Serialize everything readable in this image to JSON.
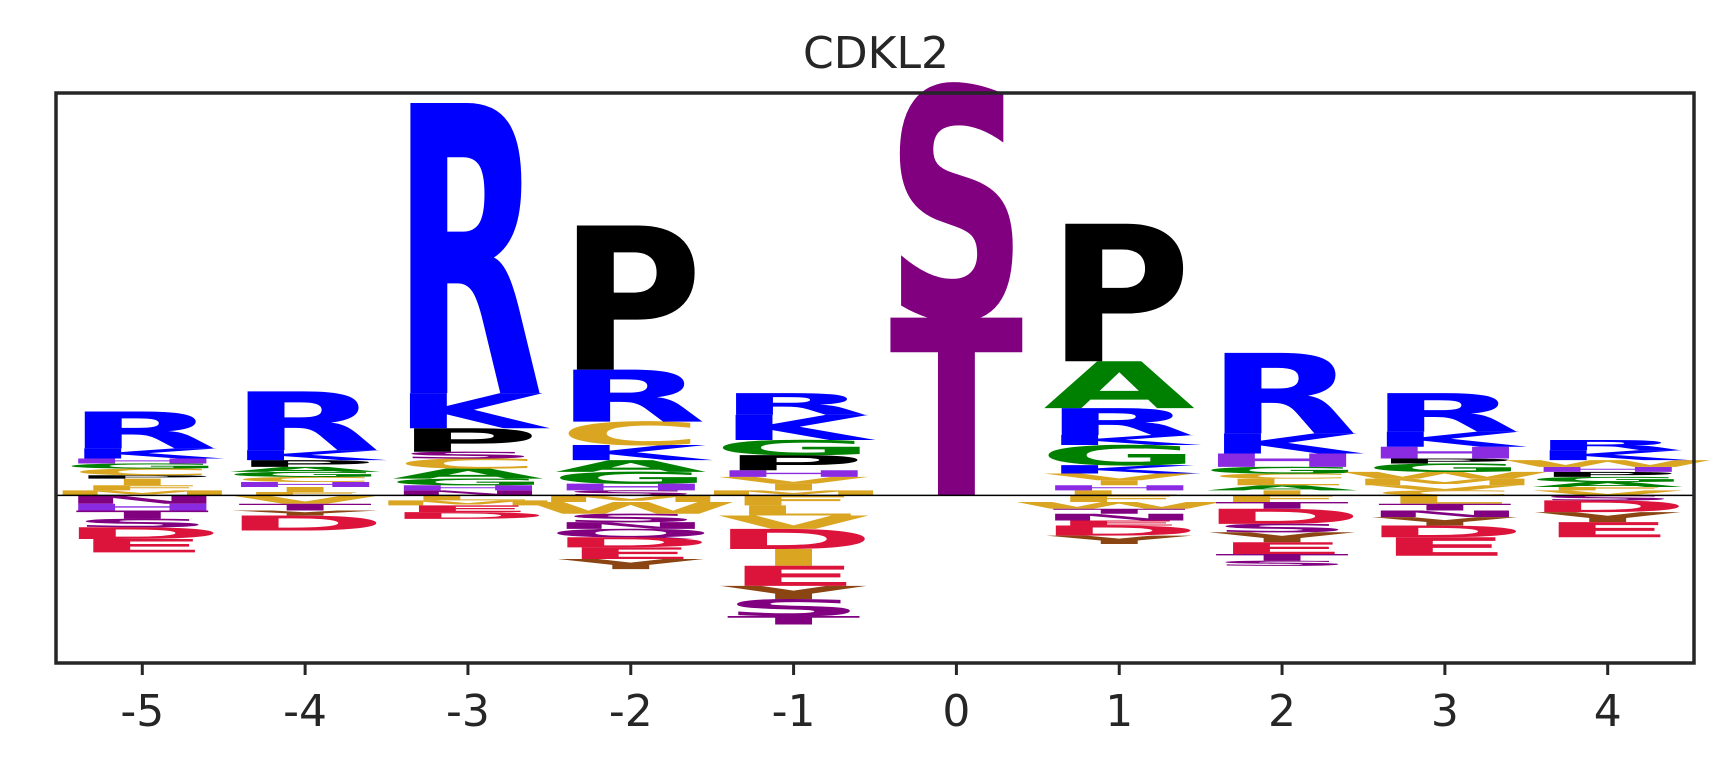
{
  "chart_data": {
    "type": "sequence-logo",
    "title": "CDKL2",
    "xlabel": "",
    "ylabel": "",
    "x_ticks": [
      "-5",
      "-4",
      "-3",
      "-2",
      "-1",
      "0",
      "1",
      "2",
      "3",
      "4"
    ],
    "ylim": [
      -1.0,
      2.4
    ],
    "grid": false,
    "colors": {
      "R": "#0000FF",
      "K": "#0000FF",
      "H": "#8A2BE2",
      "P": "#000000",
      "C": "#DAA520",
      "A": "#008000",
      "G": "#008000",
      "S": "#800080",
      "T": "#800080",
      "N": "#800080",
      "Q": "#800080",
      "D": "#DC143C",
      "E": "#DC143C",
      "L": "#DAA520",
      "I": "#DAA520",
      "V": "#DAA520",
      "M": "#DAA520",
      "F": "#DAA520",
      "W": "#DAA520",
      "Y": "#8B4513"
    },
    "positions": [
      {
        "pos": "-5",
        "up": [
          [
            "R",
            0.22
          ],
          [
            "K",
            0.06
          ],
          [
            "H",
            0.03
          ],
          [
            "G",
            0.03
          ],
          [
            "C",
            0.04
          ],
          [
            "P",
            0.02
          ],
          [
            "I",
            0.04
          ],
          [
            "F",
            0.03
          ],
          [
            "M",
            0.03
          ]
        ],
        "down": [
          [
            "N",
            0.05
          ],
          [
            "H",
            0.04
          ],
          [
            "T",
            0.05
          ],
          [
            "S",
            0.05
          ],
          [
            "D",
            0.07
          ],
          [
            "E",
            0.08
          ]
        ]
      },
      {
        "pos": "-4",
        "up": [
          [
            "R",
            0.35
          ],
          [
            "K",
            0.06
          ],
          [
            "P",
            0.04
          ],
          [
            "A",
            0.03
          ],
          [
            "G",
            0.03
          ],
          [
            "C",
            0.03
          ],
          [
            "H",
            0.03
          ],
          [
            "I",
            0.03
          ],
          [
            "F",
            0.02
          ]
        ],
        "down": [
          [
            "V",
            0.05
          ],
          [
            "T",
            0.04
          ],
          [
            "Y",
            0.03
          ],
          [
            "D",
            0.09
          ]
        ]
      },
      {
        "pos": "-3",
        "up": [
          [
            "R",
            1.73
          ],
          [
            "K",
            0.21
          ],
          [
            "P",
            0.14
          ],
          [
            "S",
            0.04
          ],
          [
            "C",
            0.06
          ],
          [
            "A",
            0.06
          ],
          [
            "G",
            0.04
          ],
          [
            "H",
            0.03
          ],
          [
            "N",
            0.03
          ]
        ],
        "down": [
          [
            "L",
            0.03
          ],
          [
            "M",
            0.03
          ],
          [
            "E",
            0.04
          ],
          [
            "D",
            0.04
          ]
        ]
      },
      {
        "pos": "-2",
        "up": [
          [
            "P",
            0.86
          ],
          [
            "R",
            0.31
          ],
          [
            "C",
            0.14
          ],
          [
            "K",
            0.09
          ],
          [
            "A",
            0.07
          ],
          [
            "G",
            0.07
          ],
          [
            "H",
            0.04
          ],
          [
            "S",
            0.03
          ]
        ],
        "down": [
          [
            "M",
            0.04
          ],
          [
            "W",
            0.07
          ],
          [
            "S",
            0.05
          ],
          [
            "N",
            0.04
          ],
          [
            "Q",
            0.05
          ],
          [
            "D",
            0.06
          ],
          [
            "E",
            0.07
          ],
          [
            "Y",
            0.06
          ]
        ]
      },
      {
        "pos": "-1",
        "up": [
          [
            "R",
            0.13
          ],
          [
            "K",
            0.15
          ],
          [
            "G",
            0.09
          ],
          [
            "P",
            0.09
          ],
          [
            "H",
            0.04
          ],
          [
            "V",
            0.04
          ],
          [
            "I",
            0.04
          ],
          [
            "M",
            0.03
          ]
        ],
        "down": [
          [
            "F",
            0.06
          ],
          [
            "L",
            0.06
          ],
          [
            "V",
            0.08
          ],
          [
            "D",
            0.12
          ],
          [
            "I",
            0.1
          ],
          [
            "E",
            0.12
          ],
          [
            "Y",
            0.08
          ],
          [
            "S",
            0.1
          ],
          [
            "T",
            0.05
          ]
        ]
      },
      {
        "pos": "0",
        "up": [
          [
            "S",
            1.38
          ],
          [
            "T",
            1.06
          ]
        ],
        "down": []
      },
      {
        "pos": "1",
        "up": [
          [
            "P",
            0.82
          ],
          [
            "A",
            0.28
          ],
          [
            "R",
            0.16
          ],
          [
            "K",
            0.06
          ],
          [
            "G",
            0.12
          ],
          [
            "K",
            0.05
          ],
          [
            "V",
            0.04
          ],
          [
            "I",
            0.03
          ],
          [
            "H",
            0.03
          ],
          [
            "L",
            0.03
          ]
        ],
        "down": [
          [
            "F",
            0.04
          ],
          [
            "W",
            0.04
          ],
          [
            "T",
            0.03
          ],
          [
            "N",
            0.04
          ],
          [
            "E",
            0.03
          ],
          [
            "D",
            0.06
          ],
          [
            "Y",
            0.05
          ]
        ]
      },
      {
        "pos": "2",
        "up": [
          [
            "R",
            0.48
          ],
          [
            "K",
            0.12
          ],
          [
            "H",
            0.08
          ],
          [
            "G",
            0.04
          ],
          [
            "C",
            0.03
          ],
          [
            "L",
            0.04
          ],
          [
            "A",
            0.03
          ],
          [
            "I",
            0.03
          ]
        ],
        "down": [
          [
            "F",
            0.04
          ],
          [
            "T",
            0.04
          ],
          [
            "D",
            0.09
          ],
          [
            "S",
            0.05
          ],
          [
            "Y",
            0.06
          ],
          [
            "E",
            0.07
          ],
          [
            "T",
            0.04
          ],
          [
            "S",
            0.03
          ]
        ]
      },
      {
        "pos": "3",
        "up": [
          [
            "R",
            0.23
          ],
          [
            "K",
            0.09
          ],
          [
            "H",
            0.07
          ],
          [
            "P",
            0.03
          ],
          [
            "G",
            0.05
          ],
          [
            "W",
            0.04
          ],
          [
            "M",
            0.04
          ],
          [
            "V",
            0.03
          ],
          [
            "C",
            0.03
          ]
        ],
        "down": [
          [
            "L",
            0.05
          ],
          [
            "T",
            0.04
          ],
          [
            "N",
            0.04
          ],
          [
            "Y",
            0.05
          ],
          [
            "D",
            0.07
          ],
          [
            "E",
            0.11
          ]
        ]
      },
      {
        "pos": "4",
        "up": [
          [
            "R",
            0.06
          ],
          [
            "K",
            0.06
          ],
          [
            "W",
            0.04
          ],
          [
            "H",
            0.03
          ],
          [
            "P",
            0.03
          ],
          [
            "G",
            0.03
          ],
          [
            "A",
            0.03
          ],
          [
            "F",
            0.02
          ],
          [
            "V",
            0.03
          ]
        ],
        "down": [
          [
            "S",
            0.03
          ],
          [
            "D",
            0.07
          ],
          [
            "Y",
            0.06
          ],
          [
            "E",
            0.09
          ]
        ]
      }
    ]
  }
}
